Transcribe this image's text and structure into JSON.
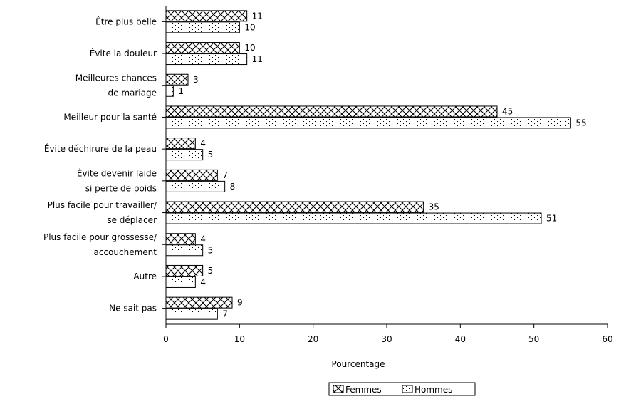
{
  "chart_data": {
    "type": "bar",
    "orientation": "horizontal",
    "categories": [
      [
        "Être plus belle"
      ],
      [
        "Évite la douleur"
      ],
      [
        "Meilleures chances",
        "de mariage"
      ],
      [
        "Meilleur pour la santé"
      ],
      [
        "Évite déchirure de la peau"
      ],
      [
        "Évite devenir laide",
        "si perte de poids"
      ],
      [
        "Plus facile pour travailler/",
        "se déplacer"
      ],
      [
        "Plus facile pour grossesse/",
        "accouchement"
      ],
      [
        "Autre"
      ],
      [
        "Ne sait pas"
      ]
    ],
    "series": [
      {
        "name": "Femmes",
        "pattern": "crosshatch",
        "values": [
          11,
          10,
          3,
          45,
          4,
          7,
          35,
          4,
          5,
          9
        ]
      },
      {
        "name": "Hommes",
        "pattern": "dots",
        "values": [
          10,
          11,
          1,
          55,
          5,
          8,
          51,
          5,
          4,
          7
        ]
      }
    ],
    "xlabel": "Pourcentage",
    "xlim": [
      0,
      60
    ],
    "xticks": [
      0,
      10,
      20,
      30,
      40,
      50,
      60
    ],
    "legend_position": "bottom",
    "grid": false
  }
}
